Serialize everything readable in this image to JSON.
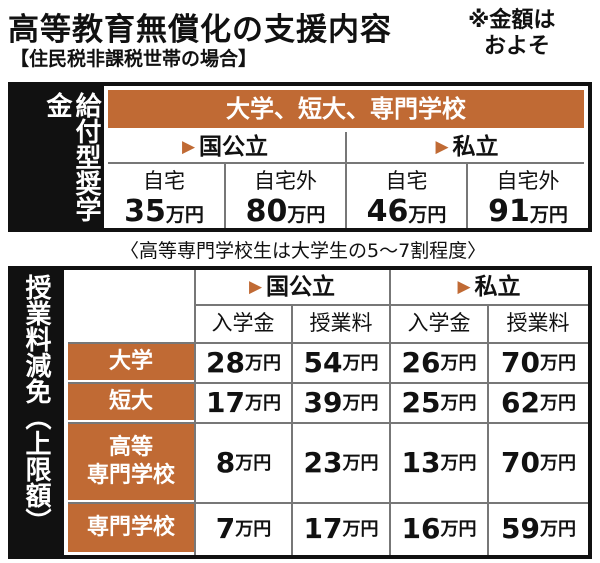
{
  "title": "高等教育無償化の支援内容",
  "subtitle": "【住民税非課税世帯の場合】",
  "note_line1": "※金額は",
  "note_line2": "およそ",
  "grant": {
    "side_label": "給付型奨学金",
    "banner": "大学、短大、専門学校",
    "sections": [
      "国公立",
      "私立"
    ],
    "cells": [
      {
        "label": "自宅",
        "amount": "35",
        "unit": "万円"
      },
      {
        "label": "自宅外",
        "amount": "80",
        "unit": "万円"
      },
      {
        "label": "自宅",
        "amount": "46",
        "unit": "万円"
      },
      {
        "label": "自宅外",
        "amount": "91",
        "unit": "万円"
      }
    ]
  },
  "caption": "〈高等専門学校生は大学生の5～7割程度〉",
  "tuition": {
    "side_label": "授業料減免（上限額）",
    "sections": [
      "国公立",
      "私立"
    ],
    "columns": [
      "入学金",
      "授業料",
      "入学金",
      "授業料"
    ],
    "rows": [
      {
        "label": "大学",
        "values": [
          "28",
          "54",
          "26",
          "70"
        ]
      },
      {
        "label": "短大",
        "values": [
          "17",
          "39",
          "25",
          "62"
        ]
      },
      {
        "label_line1": "高等",
        "label_line2": "専門学校",
        "values": [
          "8",
          "23",
          "13",
          "70"
        ]
      },
      {
        "label": "専門学校",
        "values": [
          "7",
          "17",
          "16",
          "59"
        ]
      }
    ],
    "unit": "万円"
  },
  "colors": {
    "accent": "#c06a34",
    "frame": "#111111"
  }
}
